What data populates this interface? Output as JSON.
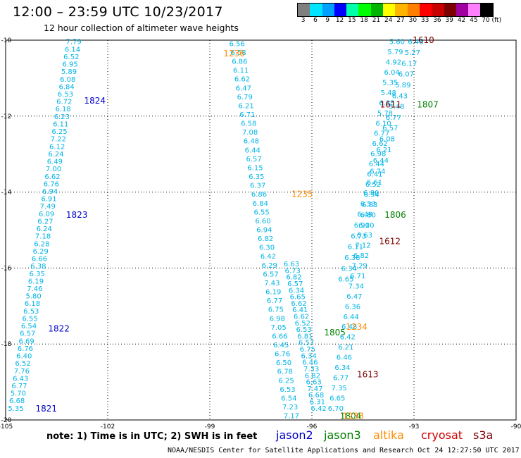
{
  "header": {
    "title": "12:00 – 23:59 UTC 10/23/2017",
    "subtitle": "12 hour collection of altimeter wave heights"
  },
  "colorbar": {
    "colors": [
      "#7f7f7f",
      "#00e5ff",
      "#00a0ff",
      "#0000ff",
      "#00ffa8",
      "#00ff00",
      "#00b400",
      "#ffff00",
      "#ffb400",
      "#ff8000",
      "#ff0000",
      "#c80000",
      "#7d0000",
      "#a000a0",
      "#ff80ff",
      "#000000"
    ],
    "ticks": [
      "3",
      "6",
      "9",
      "12",
      "15",
      "18",
      "21",
      "24",
      "27",
      "30",
      "33",
      "36",
      "39",
      "42",
      "45",
      "70 (ft)"
    ]
  },
  "axes": {
    "lon_ticks": [
      "-105",
      "-102",
      "-99",
      "-96",
      "-93",
      "-90"
    ],
    "lat_ticks": [
      "-10",
      "-12",
      "-14",
      "-16",
      "-18",
      "-20"
    ]
  },
  "tracks": [
    {
      "values": [
        "7.79",
        "6.14",
        "6.52",
        "6.95",
        "5.89",
        "6.08",
        "6.84",
        "6.53",
        "6.72",
        "6.18",
        "6.23",
        "6.11",
        "6.25",
        "7.22",
        "6.12",
        "6.24",
        "6.49",
        "7.00",
        "6.62",
        "6.76",
        "6.94",
        "6.91",
        "7.49",
        "6.09",
        "6.27",
        "6.24",
        "7.18",
        "6.28",
        "6.29",
        "6.66",
        "6.38",
        "6.35",
        "6.19",
        "7.46",
        "5.80",
        "6.18",
        "6.53",
        "6.55",
        "6.54",
        "6.57",
        "6.69",
        "6.76",
        "6.40",
        "6.52",
        "7.76",
        "6.43",
        "6.77",
        "5.70",
        "6.68",
        "5.35"
      ],
      "times": [
        {
          "text": "1824",
          "lat": -11.6
        },
        {
          "text": "1823",
          "lat": -14.6
        },
        {
          "text": "1822",
          "lat": -17.6
        },
        {
          "text": "1821",
          "lat": -19.7
        }
      ]
    },
    {
      "values": [
        "6.56",
        "6.58",
        "6.86",
        "6.11",
        "6.62",
        "6.47",
        "6.79",
        "6.21",
        "6.71",
        "6.58",
        "7.08",
        "6.48",
        "6.44",
        "6.57",
        "6.15",
        "6.35",
        "6.37",
        "6.86",
        "6.84",
        "6.55",
        "6.60",
        "6.94",
        "6.82",
        "6.30",
        "6.42",
        "6.29",
        "6.57",
        "7.43",
        "6.19",
        "6.77",
        "6.75",
        "6.98",
        "7.05",
        "6.66",
        "6.45",
        "6.76",
        "6.50",
        "6.78",
        "6.25",
        "6.53",
        "6.54",
        "7.23",
        "7.17"
      ]
    },
    {
      "values": [
        "6.63",
        "6.73",
        "6.82",
        "6.57",
        "6.34",
        "6.65",
        "6.62",
        "6.41",
        "6.62",
        "6.52",
        "6.53",
        "6.81",
        "6.57",
        "6.75",
        "6.34",
        "6.46",
        "7.33",
        "6.82",
        "6.63",
        "7.47",
        "6.68",
        "6.31",
        "6.42"
      ],
      "times": [
        {
          "text": "1805",
          "lat": -17.7
        },
        {
          "text": "1804",
          "lat": -19.9
        }
      ]
    },
    {
      "values": [
        "5.60",
        "5.79",
        "4.92",
        "6.04",
        "5.35",
        "5.48",
        "6.35",
        "5.78",
        "6.10",
        "6.77",
        "6.62",
        "6.98",
        "6.44",
        "6.41",
        "6.52",
        "6.94",
        "6.83",
        "6.80",
        "6.10",
        "6.63",
        "7.12",
        "6.82",
        "7.29",
        "6.71",
        "7.34",
        "6.47",
        "6.36",
        "6.44",
        "6.48",
        "6.42",
        "6.21",
        "6.46",
        "6.34",
        "6.77",
        "7.35",
        "6.65",
        "6.70"
      ],
      "times": [
        {
          "text": "1610",
          "lat": -10.0
        },
        {
          "text": "1612",
          "lat": -15.3
        },
        {
          "text": "1613",
          "lat": -18.8
        }
      ]
    },
    {
      "values": [
        "6.46",
        "5.27",
        "6.17",
        "6.07",
        "5.89",
        "6.43",
        "5.48",
        "6.77",
        "6.57",
        "6.08",
        "6.21",
        "6.44",
        "6.74",
        "6.61",
        "6.90",
        "6.53",
        "6.49",
        "6.90",
        "6.73",
        "6.11",
        "6.38",
        "6.34",
        "6.65"
      ],
      "times": [
        {
          "text": "1807",
          "lat": -11.7
        },
        {
          "text": "1806",
          "lat": -14.6
        }
      ]
    }
  ],
  "annotations": [
    {
      "text": "1236",
      "color": "#ff8c00"
    },
    {
      "text": "1235",
      "color": "#ff8c00"
    },
    {
      "text": "1234",
      "color": "#ff8c00"
    },
    {
      "text": "1233",
      "color": "#ff8c00"
    },
    {
      "text": "1611",
      "color": "#7d0000"
    }
  ],
  "footer": {
    "note": "note:  1) Time is in UTC;  2) SWH is in feet",
    "credit": "NOAA/NESDIS Center for Satellite Applications and Research    Oct 24 12:27:50 UTC 2017",
    "legend": [
      {
        "label": "jason2",
        "color": "#0000cc"
      },
      {
        "label": "jason3",
        "color": "#008000"
      },
      {
        "label": "altika",
        "color": "#ff8c00"
      },
      {
        "label": "cryosat",
        "color": "#cc0000"
      },
      {
        "label": "s3a",
        "color": "#7d0000"
      }
    ]
  }
}
